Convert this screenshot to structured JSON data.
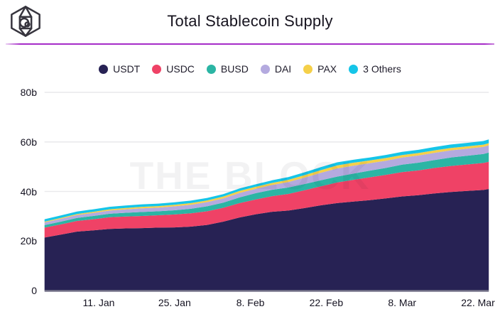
{
  "header": {
    "title": "Total Stablecoin Supply",
    "logo": "the-block-cube-logo"
  },
  "watermark": {
    "text": "THE BLOCK"
  },
  "colors": {
    "accent_divider": "#a62cc8",
    "grid": "#e9e9ec",
    "axis_line": "#77748a",
    "tick_text": "#141220",
    "title_text": "#17141f"
  },
  "chart_data": {
    "type": "area",
    "stacked": true,
    "title": "Total Stablecoin Supply",
    "unit": "billions USD",
    "xlabel": "",
    "ylabel": "",
    "ylim": [
      0,
      80
    ],
    "grid": true,
    "grid_values": [
      20,
      40,
      60,
      80
    ],
    "legend_position": "top",
    "x_days": [
      0,
      3,
      6,
      9,
      12,
      15,
      18,
      21,
      24,
      27,
      30,
      33,
      36,
      39,
      42,
      45,
      48,
      51,
      54,
      57,
      60,
      63,
      66,
      69,
      72,
      75,
      78,
      81,
      82
    ],
    "series": [
      {
        "name": "USDT",
        "color": "#272254",
        "values": [
          21.4,
          22.6,
          23.8,
          24.3,
          24.9,
          25.1,
          25.2,
          25.4,
          25.5,
          25.8,
          26.5,
          27.8,
          29.5,
          30.8,
          31.8,
          32.3,
          33.3,
          34.4,
          35.3,
          35.9,
          36.5,
          37.2,
          38.0,
          38.5,
          39.2,
          39.8,
          40.2,
          40.6,
          41.0
        ]
      },
      {
        "name": "USDC",
        "color": "#ef4266",
        "values": [
          4.0,
          4.1,
          4.3,
          4.5,
          4.7,
          4.8,
          4.9,
          5.0,
          5.2,
          5.4,
          5.5,
          5.6,
          5.8,
          6.0,
          6.3,
          6.7,
          7.2,
          7.7,
          8.3,
          8.8,
          9.2,
          9.5,
          9.8,
          10.0,
          10.3,
          10.5,
          10.7,
          10.9,
          11.0
        ]
      },
      {
        "name": "BUSD",
        "color": "#2bb5a4",
        "values": [
          1.0,
          1.1,
          1.2,
          1.3,
          1.4,
          1.5,
          1.6,
          1.6,
          1.7,
          1.8,
          2.0,
          2.1,
          2.3,
          2.5,
          2.6,
          2.6,
          2.5,
          2.4,
          2.4,
          2.5,
          2.7,
          2.8,
          3.0,
          3.1,
          3.2,
          3.4,
          3.5,
          3.6,
          3.7
        ]
      },
      {
        "name": "DAI",
        "color": "#b4aadf",
        "values": [
          1.1,
          1.15,
          1.2,
          1.25,
          1.3,
          1.4,
          1.5,
          1.5,
          1.6,
          1.6,
          1.7,
          1.7,
          1.8,
          1.8,
          1.9,
          2.2,
          2.6,
          3.0,
          3.3,
          3.2,
          3.0,
          2.9,
          2.9,
          2.9,
          2.9,
          2.9,
          2.9,
          2.9,
          2.9
        ]
      },
      {
        "name": "PAX",
        "color": "#f5d049",
        "values": [
          0.3,
          0.35,
          0.4,
          0.45,
          0.5,
          0.55,
          0.6,
          0.6,
          0.65,
          0.7,
          0.7,
          0.75,
          0.8,
          0.8,
          0.85,
          0.9,
          1.0,
          1.1,
          1.2,
          1.2,
          1.1,
          1.1,
          1.0,
          1.0,
          1.0,
          0.95,
          0.9,
          0.9,
          0.9
        ]
      },
      {
        "name": "3 Others",
        "color": "#15c5e8",
        "values": [
          1.0,
          1.0,
          1.0,
          1.0,
          1.0,
          1.0,
          1.0,
          1.0,
          1.0,
          1.0,
          1.0,
          1.0,
          1.0,
          1.0,
          1.05,
          1.1,
          1.15,
          1.2,
          1.25,
          1.2,
          1.2,
          1.25,
          1.3,
          1.3,
          1.35,
          1.4,
          1.4,
          1.45,
          1.5
        ]
      }
    ],
    "y_ticks": [
      {
        "label": "0",
        "value": 0
      },
      {
        "label": "20b",
        "value": 20
      },
      {
        "label": "40b",
        "value": 40
      },
      {
        "label": "60b",
        "value": 60
      },
      {
        "label": "80b",
        "value": 80
      }
    ],
    "x_ticks": [
      {
        "label": "11. Jan",
        "day": 10
      },
      {
        "label": "25. Jan",
        "day": 24
      },
      {
        "label": "8. Feb",
        "day": 38
      },
      {
        "label": "22. Feb",
        "day": 52
      },
      {
        "label": "8. Mar",
        "day": 66
      },
      {
        "label": "22. Mar",
        "day": 80
      }
    ]
  }
}
